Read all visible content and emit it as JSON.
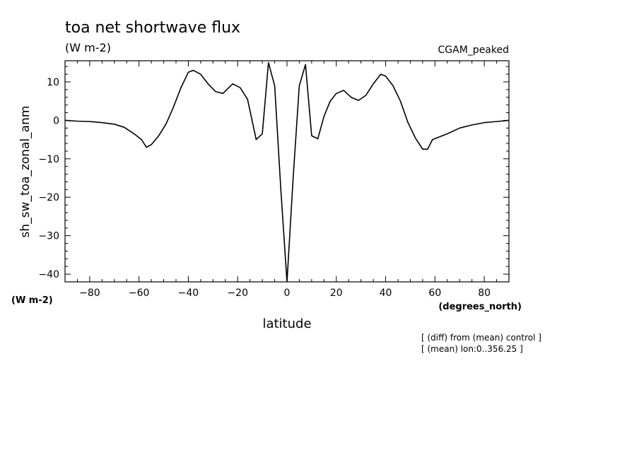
{
  "chart_data": {
    "type": "line",
    "title": "toa net shortwave flux",
    "title_units": "(W m-2)",
    "subtitle": "CGAM_peaked",
    "xlabel": "latitude",
    "xunits": "(degrees_north)",
    "ylabel": "sh_sw_toa_zonal_anm",
    "yunits": "(W m-2)",
    "xlim": [
      -90,
      90
    ],
    "ylim": [
      -42,
      15.5
    ],
    "xticks": [
      -80,
      -60,
      -40,
      -20,
      0,
      20,
      40,
      60,
      80
    ],
    "yticks": [
      -40,
      -30,
      -20,
      -10,
      0,
      10
    ],
    "grid": false,
    "notes": [
      "[ (diff) from (mean) control ]",
      "[ (mean) lon:0..356.25 ]"
    ],
    "series": [
      {
        "x": [
          -90,
          -85,
          -80,
          -75,
          -70,
          -66,
          -62,
          -59,
          -57,
          -55,
          -52,
          -49,
          -46,
          -43,
          -40,
          -38,
          -35,
          -32,
          -29,
          -26,
          -22,
          -19,
          -16,
          -12.5,
          -10,
          -7.5,
          -5,
          -2.5,
          0,
          2.5,
          5,
          7.5,
          10,
          12.5,
          15,
          17.5,
          20,
          23,
          26,
          29,
          32,
          35,
          38,
          40,
          43,
          46,
          49,
          52,
          55,
          57,
          59,
          61,
          65,
          70,
          75,
          80,
          85,
          90
        ],
        "y": [
          0,
          -0.2,
          -0.3,
          -0.6,
          -1.0,
          -1.8,
          -3.5,
          -5.0,
          -7.0,
          -6.3,
          -4.0,
          -0.9,
          3.5,
          8.5,
          12.5,
          13.0,
          12.0,
          9.5,
          7.5,
          7.0,
          9.5,
          8.5,
          5.5,
          -5.0,
          -3.5,
          15.0,
          9.0,
          -18.0,
          -42.0,
          -15.0,
          9.0,
          14.5,
          -4.0,
          -4.8,
          1.0,
          5.0,
          7.0,
          7.8,
          6.0,
          5.2,
          6.5,
          9.5,
          12.0,
          11.5,
          9.0,
          5.0,
          -0.5,
          -4.5,
          -7.5,
          -7.5,
          -5.0,
          -4.5,
          -3.5,
          -2.0,
          -1.2,
          -0.6,
          -0.3,
          0
        ]
      }
    ]
  }
}
